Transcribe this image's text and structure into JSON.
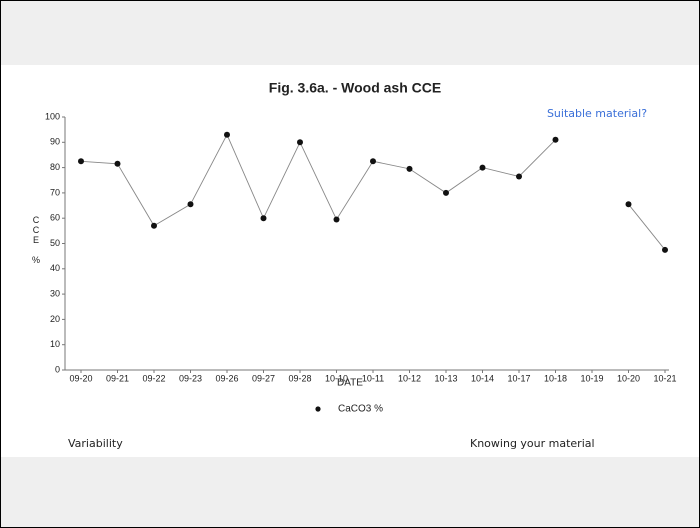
{
  "chart_data": {
    "type": "line",
    "title": "Fig. 3.6a. - Wood ash CCE",
    "x_label": "DATE",
    "y_label": "CCE %",
    "annotations": [
      "Suitable material?",
      "Variability",
      "Knowing your material"
    ],
    "categories": [
      "09-20",
      "09-21",
      "09-22",
      "09-23",
      "09-26",
      "09-27",
      "09-28",
      "10-10",
      "10-11",
      "10-12",
      "10-13",
      "10-14",
      "10-17",
      "10-18",
      "10-19",
      "10-20",
      "10-21"
    ],
    "series": [
      {
        "name": "CaCO3 %",
        "color": "#111111",
        "values": [
          82.5,
          81.5,
          57,
          65.5,
          93,
          60,
          90,
          59.5,
          82.5,
          79.5,
          70,
          80,
          76.5,
          91,
          null,
          65.5,
          47.5
        ]
      }
    ],
    "ylim": [
      0,
      100
    ],
    "yticks": [
      0,
      10,
      20,
      30,
      40,
      50,
      60,
      70,
      80,
      90,
      100
    ]
  }
}
